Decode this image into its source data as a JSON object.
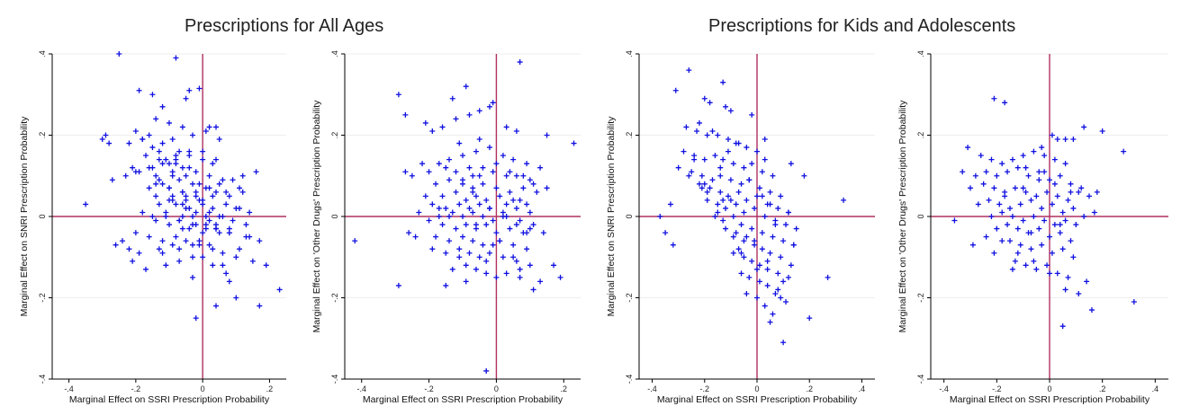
{
  "titles": {
    "left": "Prescriptions for All Ages",
    "right": "Prescriptions for Kids and Adolescents"
  },
  "colors": {
    "marker": "#1010e0",
    "refline": "#b03060",
    "grid": "#eeeeee"
  },
  "chart_data": [
    {
      "type": "scatter",
      "group": "Prescriptions for All Ages",
      "xlabel": "Marginal Effect on SSRI Prescription Probability",
      "ylabel": "Marginal Effect on SNRI Prescription Probability",
      "xlim": [
        -0.45,
        0.25
      ],
      "ylim": [
        -0.4,
        0.4
      ],
      "xticks": [
        -0.4,
        -0.2,
        0,
        0.2
      ],
      "xticklabels": [
        "-.4",
        "-.2",
        "0",
        ".2"
      ],
      "yticks": [
        -0.4,
        -0.2,
        0,
        0.2,
        0.4
      ],
      "yticklabels": [
        "-.4",
        "-.2",
        "0",
        ".2",
        ".4"
      ],
      "refline_x": 0,
      "refline_y": 0,
      "marker": "+",
      "x": [
        -0.25,
        -0.08,
        -0.01,
        -0.04,
        -0.29,
        -0.3,
        -0.28,
        -0.02,
        0.04,
        0.1,
        0.17,
        0.23,
        0.08,
        0.04,
        -0.35,
        -0.15,
        -0.19,
        -0.12,
        -0.05,
        0.02,
        -0.1,
        -0.14,
        -0.06,
        -0.16,
        -0.2,
        -0.18,
        -0.22,
        -0.12,
        -0.09,
        -0.03,
        0.01,
        0.05,
        -0.07,
        -0.13,
        -0.17,
        -0.11,
        -0.08,
        -0.04,
        0.0,
        0.03,
        -0.06,
        -0.1,
        -0.15,
        -0.19,
        -0.21,
        -0.14,
        -0.09,
        -0.05,
        -0.02,
        0.02,
        0.06,
        -0.03,
        -0.07,
        -0.12,
        -0.16,
        -0.1,
        -0.06,
        -0.02,
        0.01,
        0.04,
        0.08,
        0.12,
        -0.01,
        -0.05,
        -0.09,
        -0.13,
        -0.08,
        -0.04,
        0.0,
        0.03,
        0.07,
        0.11,
        -0.06,
        -0.11,
        -0.15,
        -0.18,
        -0.14,
        -0.07,
        -0.03,
        0.02,
        0.05,
        0.09,
        0.13,
        -0.02,
        -0.06,
        -0.1,
        -0.04,
        0.0,
        0.04,
        0.08,
        0.14,
        -0.08,
        -0.12,
        -0.16,
        -0.2,
        -0.24,
        -0.26,
        -0.22,
        -0.19,
        -0.13,
        -0.09,
        -0.05,
        -0.01,
        0.03,
        0.06,
        0.1,
        0.15,
        0.19,
        -0.03,
        -0.07,
        -0.11,
        -0.17,
        -0.21,
        -0.01,
        0.02,
        0.05,
        0.09,
        0.12,
        0.16,
        -0.04,
        -0.08,
        -0.13,
        0.0,
        0.03,
        0.07,
        0.11,
        -0.02,
        -0.06,
        -0.1,
        -0.14,
        0.01,
        0.04,
        0.08,
        0.13,
        0.17,
        -0.03,
        -0.07,
        -0.12,
        0.02,
        0.06,
        0.1,
        0.14,
        -0.05,
        -0.09,
        0.0,
        0.03,
        0.07,
        -0.15,
        -0.18,
        -0.11,
        -0.07,
        -0.03,
        0.01,
        0.05,
        -0.23,
        -0.27,
        -0.2,
        -0.16,
        -0.12,
        -0.08,
        -0.04,
        0.0,
        0.04,
        -0.06,
        -0.1,
        -0.14,
        -0.01,
        0.02,
        -0.03,
        0.06,
        0.11,
        -0.09,
        -0.13,
        -0.05,
        -0.02,
        0.01,
        0.04,
        0.08
      ],
      "y": [
        0.4,
        0.39,
        0.315,
        0.31,
        0.2,
        0.19,
        0.18,
        -0.25,
        -0.22,
        -0.2,
        -0.22,
        -0.18,
        -0.16,
        0.22,
        0.03,
        0.3,
        0.31,
        0.27,
        0.29,
        0.22,
        0.23,
        0.24,
        0.22,
        0.2,
        0.21,
        0.19,
        0.18,
        0.18,
        0.19,
        0.2,
        0.21,
        0.19,
        0.16,
        0.16,
        0.15,
        0.14,
        0.15,
        0.16,
        0.14,
        0.13,
        0.12,
        0.13,
        0.12,
        0.11,
        0.12,
        0.1,
        0.11,
        0.1,
        0.11,
        0.1,
        0.09,
        0.08,
        0.09,
        0.08,
        0.07,
        0.07,
        0.06,
        0.06,
        0.07,
        0.06,
        0.05,
        0.06,
        0.04,
        0.05,
        0.04,
        0.03,
        0.03,
        0.02,
        0.03,
        0.02,
        0.03,
        0.02,
        0.0,
        0.01,
        0.0,
        0.01,
        -0.01,
        -0.01,
        0.0,
        -0.01,
        0.0,
        -0.01,
        -0.02,
        -0.02,
        -0.03,
        -0.02,
        -0.03,
        -0.04,
        -0.03,
        -0.04,
        -0.05,
        -0.05,
        -0.06,
        -0.05,
        -0.04,
        -0.06,
        -0.07,
        -0.08,
        -0.09,
        -0.08,
        -0.07,
        -0.06,
        -0.07,
        -0.08,
        -0.09,
        -0.1,
        -0.11,
        -0.12,
        -0.1,
        -0.11,
        -0.12,
        -0.13,
        -0.11,
        0.08,
        0.07,
        0.08,
        0.09,
        0.1,
        0.11,
        0.12,
        0.13,
        0.14,
        0.04,
        0.05,
        0.06,
        0.07,
        0.05,
        0.06,
        0.07,
        0.08,
        -0.02,
        -0.03,
        -0.04,
        -0.05,
        -0.06,
        -0.07,
        -0.08,
        -0.09,
        0.01,
        0.0,
        0.02,
        0.01,
        0.04,
        0.05,
        -0.1,
        -0.12,
        -0.14,
        0.17,
        0.19,
        0.0,
        -0.01,
        -0.02,
        -0.03,
        -0.04,
        0.1,
        0.09,
        0.11,
        0.12,
        0.13,
        0.14,
        0.15,
        0.16,
        0.14,
        0.03,
        0.04,
        0.05,
        -0.06,
        -0.07,
        -0.15,
        -0.12,
        -0.08,
        0.1,
        0.09,
        0.02,
        0.01,
        0.0,
        -0.02,
        -0.03
      ]
    },
    {
      "type": "scatter",
      "group": "Prescriptions for All Ages",
      "xlabel": "Marginal Effect on SSRI Prescription Probability",
      "ylabel": "Marginal Effect on 'Other Drugs' Prescription Probability",
      "xlim": [
        -0.45,
        0.25
      ],
      "ylim": [
        -0.4,
        0.4
      ],
      "xticks": [
        -0.4,
        -0.2,
        0,
        0.2
      ],
      "xticklabels": [
        "-.4",
        "-.2",
        "0",
        ".2"
      ],
      "yticks": [
        -0.4,
        -0.2,
        0,
        0.2,
        0.4
      ],
      "yticklabels": [
        "-.4",
        "-.2",
        "0",
        ".2",
        ".4"
      ],
      "refline_x": 0,
      "refline_y": 0,
      "marker": "+",
      "x": [
        -0.29,
        -0.27,
        -0.21,
        -0.19,
        -0.11,
        -0.02,
        0.07,
        0.15,
        0.23,
        -0.42,
        -0.29,
        -0.03,
        0.07,
        0.11,
        0.19,
        0.17,
        -0.22,
        -0.17,
        -0.14,
        -0.1,
        -0.06,
        -0.02,
        0.02,
        0.05,
        0.09,
        0.13,
        -0.25,
        -0.2,
        -0.15,
        -0.12,
        -0.08,
        -0.05,
        -0.01,
        0.03,
        0.06,
        0.1,
        -0.18,
        -0.14,
        -0.1,
        -0.07,
        -0.04,
        0.0,
        0.04,
        0.08,
        0.12,
        -0.21,
        -0.16,
        -0.12,
        -0.09,
        -0.06,
        -0.03,
        0.01,
        0.05,
        0.09,
        -0.19,
        -0.15,
        -0.11,
        -0.08,
        -0.05,
        -0.02,
        0.02,
        0.06,
        0.1,
        -0.17,
        -0.13,
        -0.1,
        -0.07,
        -0.04,
        -0.01,
        0.03,
        0.07,
        0.11,
        -0.2,
        -0.16,
        -0.12,
        -0.09,
        -0.06,
        -0.03,
        0.0,
        0.04,
        0.08,
        -0.24,
        -0.18,
        -0.14,
        -0.1,
        -0.07,
        -0.04,
        0.01,
        0.05,
        0.09,
        -0.15,
        -0.11,
        -0.08,
        -0.05,
        -0.02,
        0.02,
        0.06,
        0.1,
        -0.13,
        -0.09,
        -0.06,
        -0.03,
        0.0,
        0.03,
        0.07,
        0.13,
        -0.16,
        -0.12,
        -0.08,
        -0.05,
        -0.01,
        0.03,
        0.06,
        0.15,
        -0.1,
        -0.07,
        -0.04,
        0.0,
        0.04,
        0.08,
        -0.14,
        -0.06,
        -0.02,
        0.02,
        0.06,
        0.1,
        0.14,
        -0.19,
        -0.11,
        -0.03,
        0.05,
        -0.27,
        -0.23,
        -0.09,
        -0.13,
        -0.05,
        0.01,
        0.09,
        -0.17,
        -0.07,
        0.03,
        -0.15,
        -0.09,
        -0.01,
        0.07,
        0.11,
        -0.26
      ],
      "y": [
        0.3,
        0.25,
        0.23,
        0.21,
        0.18,
        0.27,
        0.38,
        0.2,
        0.18,
        -0.06,
        -0.17,
        -0.38,
        -0.15,
        -0.18,
        -0.15,
        -0.12,
        0.13,
        0.13,
        0.14,
        0.15,
        0.16,
        0.17,
        0.15,
        0.14,
        0.13,
        0.12,
        0.1,
        0.11,
        0.12,
        0.11,
        0.12,
        0.1,
        0.11,
        0.1,
        0.1,
        0.09,
        0.08,
        0.09,
        0.08,
        0.07,
        0.08,
        0.07,
        0.06,
        0.07,
        0.06,
        0.05,
        0.05,
        0.06,
        0.04,
        0.05,
        0.04,
        0.05,
        0.04,
        0.03,
        0.03,
        0.02,
        0.03,
        0.02,
        0.03,
        0.02,
        0.01,
        0.02,
        0.01,
        0.0,
        0.01,
        0.0,
        0.01,
        0.0,
        -0.01,
        0.0,
        -0.01,
        -0.02,
        -0.01,
        -0.02,
        -0.03,
        -0.02,
        -0.03,
        -0.02,
        -0.04,
        -0.03,
        -0.04,
        -0.05,
        -0.05,
        -0.06,
        -0.05,
        -0.06,
        -0.07,
        -0.06,
        -0.07,
        -0.08,
        -0.09,
        -0.08,
        -0.09,
        -0.1,
        -0.09,
        -0.1,
        -0.11,
        -0.12,
        -0.13,
        -0.12,
        -0.13,
        -0.14,
        -0.15,
        -0.14,
        -0.13,
        -0.16,
        0.22,
        0.24,
        0.25,
        0.26,
        0.28,
        0.22,
        0.21,
        0.07,
        0.09,
        0.1,
        0.12,
        0.13,
        0.11,
        0.1,
        0.0,
        -0.02,
        0.02,
        0.0,
        -0.02,
        -0.03,
        -0.04,
        -0.08,
        -0.1,
        -0.11,
        -0.1,
        0.11,
        0.01,
        0.32,
        0.29,
        0.19,
        -0.06,
        -0.04,
        0.02,
        0.06,
        0.03,
        -0.17,
        -0.16,
        -0.07,
        0.04,
        0.08,
        -0.04
      ]
    },
    {
      "type": "scatter",
      "group": "Prescriptions for Kids and Adolescents",
      "xlabel": "Marginal Effect on SSRI Prescription Probability",
      "ylabel": "Marginal Effect on SNRI Prescription Probability",
      "xlim": [
        -0.45,
        0.45
      ],
      "ylim": [
        -0.4,
        0.4
      ],
      "xticks": [
        -0.4,
        -0.2,
        0,
        0.2,
        0.4
      ],
      "xticklabels": [
        "-.4",
        "-.2",
        "0",
        ".2",
        ".4"
      ],
      "yticks": [
        -0.4,
        -0.2,
        0,
        0.2,
        0.4
      ],
      "yticklabels": [
        "-.4",
        "-.2",
        "0",
        ".2",
        ".4"
      ],
      "refline_x": 0,
      "refline_y": 0,
      "marker": "+",
      "x": [
        -0.26,
        -0.31,
        -0.13,
        -0.2,
        -0.18,
        -0.12,
        -0.1,
        -0.02,
        0.03,
        0.13,
        0.18,
        0.2,
        0.27,
        0.33,
        -0.35,
        -0.32,
        -0.37,
        -0.09,
        0.1,
        -0.27,
        -0.23,
        -0.19,
        -0.15,
        -0.11,
        -0.07,
        -0.04,
        0.0,
        -0.28,
        -0.24,
        -0.2,
        -0.16,
        -0.13,
        -0.09,
        -0.05,
        -0.02,
        0.02,
        0.06,
        -0.3,
        -0.25,
        -0.21,
        -0.17,
        -0.14,
        -0.1,
        -0.06,
        -0.03,
        0.01,
        0.05,
        0.09,
        -0.22,
        -0.18,
        -0.14,
        -0.11,
        -0.07,
        -0.04,
        0.0,
        0.04,
        0.08,
        0.12,
        -0.19,
        -0.15,
        -0.12,
        -0.08,
        -0.05,
        -0.01,
        0.03,
        0.07,
        0.11,
        0.15,
        -0.16,
        -0.13,
        -0.09,
        -0.06,
        -0.02,
        0.02,
        0.06,
        0.1,
        0.14,
        -0.12,
        -0.08,
        -0.05,
        -0.01,
        0.02,
        0.05,
        0.09,
        0.13,
        -0.09,
        -0.05,
        -0.02,
        0.01,
        0.04,
        0.08,
        0.12,
        -0.06,
        -0.03,
        0.01,
        0.04,
        0.07,
        0.11,
        -0.04,
        0.0,
        0.03,
        0.06,
        0.09,
        0.05,
        0.08,
        0.1,
        -0.24,
        -0.17,
        -0.21,
        -0.14,
        -0.08,
        -0.03,
        0.03,
        -0.26,
        -0.19,
        -0.11,
        -0.06,
        0.02,
        0.07,
        -0.15,
        -0.1,
        -0.01,
        0.05,
        -0.2,
        -0.13,
        -0.07,
        0.04,
        0.12,
        -0.33,
        -0.22,
        -0.04,
        0.0,
        0.14
      ],
      "y": [
        0.36,
        0.31,
        0.33,
        0.29,
        0.28,
        0.27,
        0.26,
        0.25,
        0.19,
        0.13,
        0.1,
        -0.25,
        -0.15,
        0.04,
        -0.04,
        -0.07,
        0.0,
        -0.05,
        -0.31,
        0.22,
        0.21,
        0.2,
        0.2,
        0.19,
        0.18,
        0.17,
        0.16,
        0.16,
        0.15,
        0.14,
        0.15,
        0.14,
        0.13,
        0.12,
        0.13,
        0.11,
        0.1,
        0.12,
        0.11,
        0.1,
        0.09,
        0.1,
        0.09,
        0.08,
        0.09,
        0.07,
        0.06,
        0.05,
        0.08,
        0.07,
        0.06,
        0.05,
        0.06,
        0.04,
        0.05,
        0.03,
        0.02,
        0.01,
        0.04,
        0.03,
        0.02,
        0.03,
        0.01,
        0.02,
        0.0,
        -0.01,
        -0.02,
        -0.03,
        0.0,
        -0.01,
        0.0,
        -0.02,
        -0.03,
        -0.04,
        -0.05,
        -0.06,
        -0.07,
        -0.03,
        -0.04,
        -0.06,
        -0.07,
        -0.08,
        -0.09,
        -0.1,
        -0.12,
        -0.09,
        -0.1,
        -0.11,
        -0.12,
        -0.13,
        -0.14,
        -0.15,
        -0.14,
        -0.15,
        -0.16,
        -0.17,
        -0.19,
        -0.21,
        -0.19,
        -0.2,
        -0.22,
        -0.24,
        -0.2,
        -0.26,
        -0.18,
        -0.16,
        0.14,
        0.21,
        0.07,
        0.12,
        0.18,
        0.09,
        0.14,
        0.1,
        0.06,
        0.16,
        -0.09,
        0.05,
        -0.02,
        0.01,
        0.04,
        -0.06,
        0.03,
        0.08,
        0.04,
        -0.08,
        -0.11,
        0.01,
        0.03,
        0.23,
        -0.05,
        -0.13,
        -0.07
      ]
    },
    {
      "type": "scatter",
      "group": "Prescriptions for Kids and Adolescents",
      "xlabel": "Marginal Effect on SSRI Prescription Probability",
      "ylabel": "Marginal Effect on 'Other Drugs' Prescription Probability",
      "xlim": [
        -0.45,
        0.45
      ],
      "ylim": [
        -0.4,
        0.4
      ],
      "xticks": [
        -0.4,
        -0.2,
        0,
        0.2,
        0.4
      ],
      "xticklabels": [
        "-.4",
        "-.2",
        "0",
        ".2",
        ".4"
      ],
      "yticks": [
        -0.4,
        -0.2,
        0,
        0.2,
        0.4
      ],
      "yticklabels": [
        "-.4",
        "-.2",
        "0",
        ".2",
        ".4"
      ],
      "refline_x": 0,
      "refline_y": 0,
      "marker": "+",
      "x": [
        -0.21,
        -0.17,
        0.01,
        0.13,
        0.2,
        0.28,
        -0.31,
        -0.33,
        -0.03,
        0.03,
        0.06,
        0.09,
        0.16,
        0.32,
        -0.36,
        -0.26,
        -0.22,
        -0.18,
        -0.14,
        -0.1,
        -0.06,
        -0.02,
        0.02,
        0.06,
        -0.28,
        -0.24,
        -0.2,
        -0.16,
        -0.12,
        -0.08,
        -0.04,
        0.0,
        0.04,
        0.08,
        0.12,
        -0.3,
        -0.25,
        -0.21,
        -0.17,
        -0.13,
        -0.09,
        -0.05,
        -0.01,
        0.03,
        0.07,
        0.11,
        0.15,
        -0.27,
        -0.23,
        -0.19,
        -0.15,
        -0.11,
        -0.07,
        -0.03,
        0.01,
        0.05,
        0.09,
        0.13,
        0.17,
        -0.22,
        -0.18,
        -0.14,
        -0.1,
        -0.06,
        -0.02,
        0.02,
        0.06,
        0.1,
        -0.2,
        -0.16,
        -0.12,
        -0.08,
        -0.04,
        0.0,
        0.04,
        0.08,
        -0.15,
        -0.11,
        -0.07,
        -0.03,
        0.01,
        0.05,
        0.09,
        -0.13,
        -0.09,
        -0.05,
        -0.01,
        0.03,
        0.07,
        -0.24,
        -0.18,
        -0.12,
        -0.06,
        0.0,
        0.05,
        0.11,
        -0.17,
        -0.1,
        -0.04,
        0.02,
        0.08,
        -0.29,
        -0.21,
        -0.14,
        -0.07,
        0.04,
        0.14,
        -0.09,
        -0.02,
        0.06,
        0.18
      ],
      "y": [
        0.29,
        0.28,
        0.2,
        0.22,
        0.21,
        0.16,
        0.17,
        0.11,
        0.17,
        0.19,
        0.19,
        0.19,
        -0.23,
        -0.21,
        -0.01,
        0.15,
        0.14,
        0.13,
        0.14,
        0.15,
        0.16,
        0.15,
        0.14,
        0.13,
        0.1,
        0.11,
        0.1,
        0.11,
        0.12,
        0.1,
        0.11,
        0.09,
        0.1,
        0.08,
        0.07,
        0.07,
        0.08,
        0.07,
        0.06,
        0.07,
        0.06,
        0.05,
        0.06,
        0.05,
        0.04,
        0.06,
        0.05,
        0.03,
        0.04,
        0.03,
        0.02,
        0.03,
        0.04,
        0.02,
        0.03,
        0.01,
        0.02,
        0.0,
        0.01,
        0.0,
        0.01,
        0.0,
        -0.01,
        0.0,
        -0.01,
        -0.02,
        -0.01,
        -0.02,
        -0.03,
        -0.02,
        -0.03,
        -0.04,
        -0.03,
        -0.05,
        -0.04,
        -0.06,
        -0.06,
        -0.07,
        -0.08,
        -0.07,
        -0.09,
        -0.08,
        -0.1,
        -0.11,
        -0.12,
        -0.13,
        -0.12,
        -0.14,
        -0.15,
        -0.05,
        -0.06,
        -0.09,
        -0.11,
        -0.14,
        -0.27,
        -0.19,
        0.05,
        0.07,
        0.09,
        0.08,
        0.06,
        -0.07,
        -0.09,
        -0.13,
        -0.04,
        -0.02,
        -0.16,
        0.12,
        0.11,
        -0.18,
        0.06
      ]
    }
  ]
}
